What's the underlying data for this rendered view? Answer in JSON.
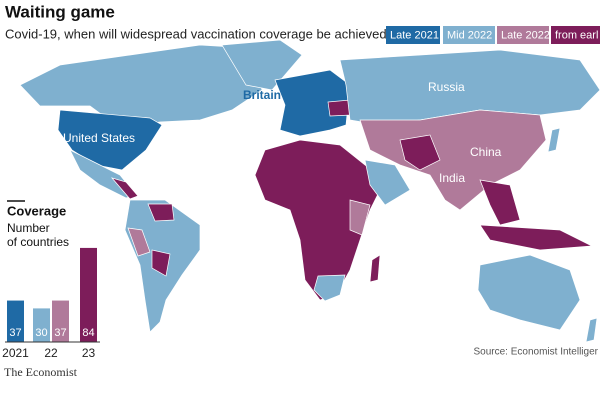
{
  "header": {
    "title": "Waiting game",
    "subtitle": "Covid-19, when will widespread vaccination coverage be achieved?"
  },
  "map_labels": [
    "Britain",
    "Russia",
    "United States",
    "China",
    "India"
  ],
  "chart_data": {
    "type": "bar",
    "title": "Coverage",
    "subtitle": [
      "Number",
      "of countries"
    ],
    "categories": [
      "2021",
      "22",
      "23"
    ],
    "series": [
      {
        "name": "Late 2021",
        "color": "#1f6aa5",
        "values": [
          37,
          null,
          null
        ]
      },
      {
        "name": "Mid 2022",
        "color": "#7fb0cf",
        "values": [
          null,
          30,
          null
        ]
      },
      {
        "name": "Late 2022",
        "color": "#b07a9a",
        "values": [
          null,
          37,
          null
        ]
      },
      {
        "name": "from earl",
        "color": "#7d1d5a",
        "values": [
          null,
          null,
          84
        ]
      }
    ]
  },
  "source": "Source: Economist Intelliger",
  "logo": "The Economist"
}
